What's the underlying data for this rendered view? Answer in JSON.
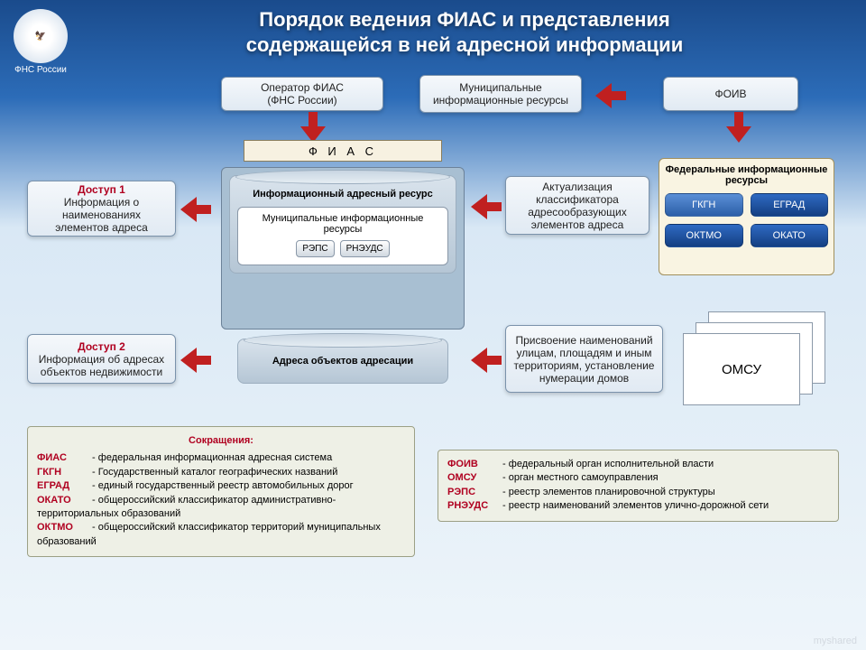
{
  "title_line1": "Порядок ведения ФИАС и представления",
  "title_line2": "содержащейся в ней адресной информации",
  "emblem_label": "ФНС России",
  "top": {
    "operator": "Оператор ФИАС\n(ФНС России)",
    "munres": "Муниципальные информационные ресурсы",
    "foiv": "ФОИВ"
  },
  "fias_label": "Ф И А С",
  "fias_panel": {
    "cyl1_title": "Информационный адресный ресурс",
    "cyl1_inner": "Муниципальные информационные ресурсы",
    "tag1": "РЭПС",
    "tag2": "РНЭУДС",
    "cyl2_title": "Адреса объектов адресации"
  },
  "left": {
    "access1_title": "Доступ 1",
    "access1_text": "Информация о наименованиях элементов адреса",
    "access2_title": "Доступ 2",
    "access2_text": "Информация об адресах объектов недвижимости"
  },
  "mid_right": {
    "aktual": "Актуализация классификатора адресообразующих элементов адреса",
    "prisv": "Присвоение наименований улицам, площадям и иным территориям, установление нумерации домов"
  },
  "fed_panel": {
    "title": "Федеральные информационные ресурсы",
    "gkgn": "ГКГН",
    "egrad": "ЕГРАД",
    "oktmo": "ОКТМО",
    "okato": "ОКАТО"
  },
  "omsu": "ОМСУ",
  "legend_left": {
    "title": "Сокращения:",
    "rows": [
      [
        "ФИАС",
        "- федеральная информационная адресная система"
      ],
      [
        "ГКГН",
        "- Государственный каталог географических названий"
      ],
      [
        "ЕГРАД",
        "- единый государственный реестр автомобильных дорог"
      ],
      [
        "ОКАТО",
        "- общероссийский классификатор административно-территориальных образований"
      ],
      [
        "ОКТМО",
        "- общероссийский классификатор территорий муниципальных образований"
      ]
    ]
  },
  "legend_right": {
    "rows": [
      [
        "ФОИВ",
        "- федеральный орган исполнительной власти"
      ],
      [
        "ОМСУ",
        "- орган местного самоуправления"
      ],
      [
        "РЭПС",
        "- реестр элементов планировочной структуры"
      ],
      [
        "РНЭУДС",
        "- реестр наименований элементов улично-дорожной сети"
      ]
    ]
  },
  "watermark": "myshared"
}
